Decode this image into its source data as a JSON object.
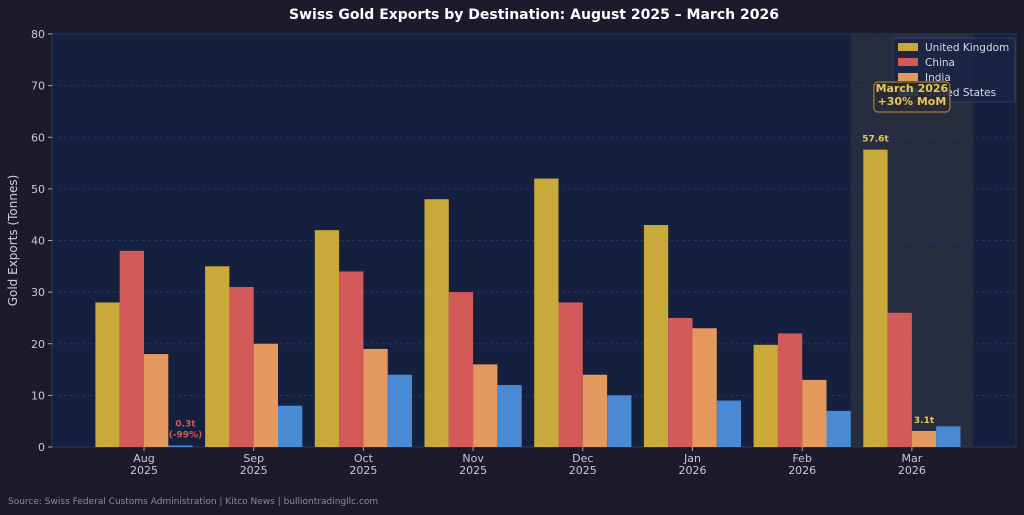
{
  "chart_data": {
    "type": "bar",
    "title": "Swiss Gold Exports by Destination: August 2025 – March 2026",
    "xlabel": "",
    "ylabel": "Gold Exports (Tonnes)",
    "ylim": [
      0,
      80
    ],
    "yticks": [
      0,
      10,
      20,
      30,
      40,
      50,
      60,
      70,
      80
    ],
    "grid": true,
    "legend_position": "top-right",
    "categories": [
      "Aug\n2025",
      "Sep\n2025",
      "Oct\n2025",
      "Nov\n2025",
      "Dec\n2025",
      "Jan\n2026",
      "Feb\n2026",
      "Mar\n2026"
    ],
    "series": [
      {
        "name": "United Kingdom",
        "color": "#c9a93a",
        "values": [
          28,
          35,
          42,
          48,
          52,
          43,
          19.8,
          57.6
        ]
      },
      {
        "name": "China",
        "color": "#d45a5a",
        "values": [
          38,
          31,
          34,
          30,
          28,
          25,
          22,
          26
        ]
      },
      {
        "name": "India",
        "color": "#e6995e",
        "values": [
          18,
          20,
          19,
          16,
          14,
          23,
          13,
          3.1
        ]
      },
      {
        "name": "United States",
        "color": "#4a8ad4",
        "values": [
          0.3,
          8,
          14,
          12,
          10,
          9,
          7,
          4
        ]
      }
    ],
    "highlight_category": "Mar\n2026",
    "annotations": [
      {
        "text": "0.3t\n(-99%)",
        "series": "United States",
        "category": "Aug\n2025",
        "color": "#d45a5a"
      },
      {
        "text": "57.6t",
        "series": "United Kingdom",
        "category": "Mar\n2026",
        "color": "#e8c65a"
      },
      {
        "text": "3.1t",
        "series": "India",
        "category": "Mar\n2026",
        "color": "#e8c65a"
      },
      {
        "text": "March 2026\n+30% MoM",
        "category": "Mar\n2026",
        "color": "#e8c65a",
        "boxed": true
      }
    ]
  },
  "source": "Source: Swiss Federal Customs Administration | Kitco News | bulliontradingllc.com"
}
